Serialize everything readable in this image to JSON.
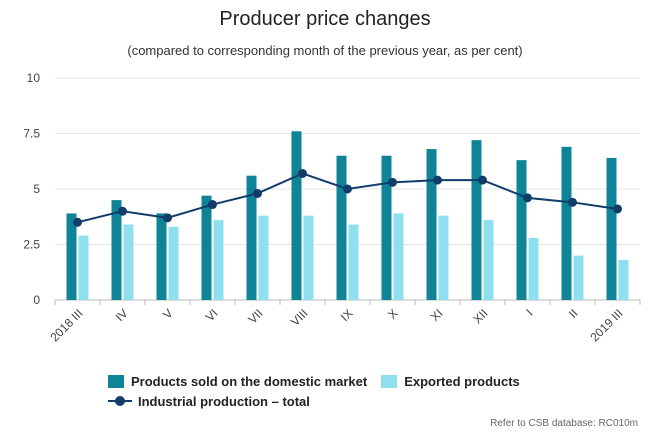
{
  "chart_data": {
    "type": "bar",
    "title": "Producer price changes",
    "subtitle": "(compared to corresponding month of the previous year, as per cent)",
    "categories": [
      "2018 III",
      "IV",
      "V",
      "VI",
      "VII",
      "VIII",
      "IX",
      "X",
      "XI",
      "XII",
      "I",
      "II",
      "2019 III"
    ],
    "ylim": [
      0,
      10
    ],
    "yticks": [
      "0",
      "2.5",
      "5",
      "7.5",
      "10"
    ],
    "grid": true,
    "legend_position": "bottom",
    "series": [
      {
        "name": "Products sold on the domestic market",
        "kind": "bar",
        "color": "#0e8496",
        "values": [
          3.9,
          4.5,
          3.9,
          4.7,
          5.6,
          7.6,
          6.5,
          6.5,
          6.8,
          7.2,
          6.3,
          6.9,
          6.4
        ]
      },
      {
        "name": "Exported products",
        "kind": "bar",
        "color": "#8ee0ef",
        "values": [
          2.9,
          3.4,
          3.3,
          3.6,
          3.8,
          3.8,
          3.4,
          3.9,
          3.8,
          3.6,
          2.8,
          2.0,
          1.8
        ]
      },
      {
        "name": "Industrial production – total",
        "kind": "line",
        "color": "#123d6b",
        "values": [
          3.5,
          4.0,
          3.7,
          4.3,
          4.8,
          5.7,
          5.0,
          5.3,
          5.4,
          5.4,
          4.6,
          4.4,
          4.1
        ]
      }
    ]
  },
  "source_note": "Refer to CSB database: RC010m"
}
